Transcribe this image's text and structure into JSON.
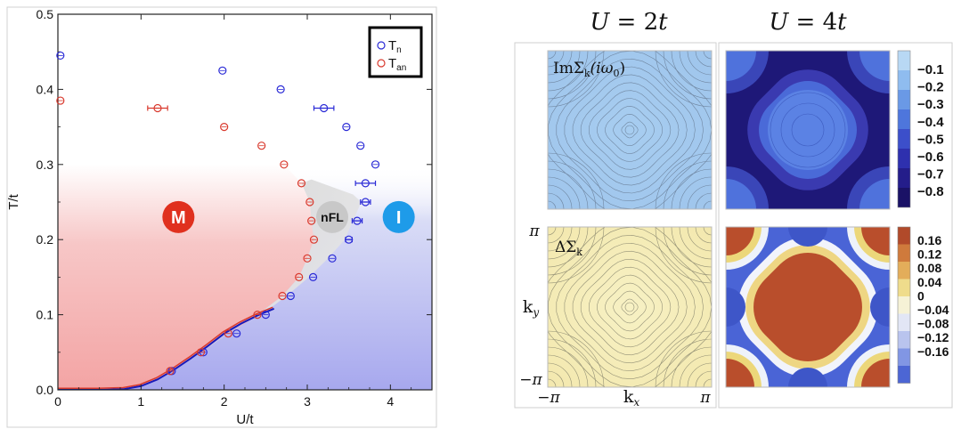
{
  "chart_data": [
    {
      "type": "scatter",
      "title": "",
      "xlabel": "U/t",
      "ylabel": "T/t",
      "xlim": [
        0,
        4.5
      ],
      "ylim": [
        0,
        0.5
      ],
      "x_ticks": [
        "0",
        "1",
        "2",
        "3",
        "4"
      ],
      "y_ticks": [
        "0.0",
        "0.1",
        "0.2",
        "0.3",
        "0.4",
        "0.5"
      ],
      "legend_position": "top-right",
      "series": [
        {
          "name": "T_n",
          "color": "#2a2ad6",
          "points": [
            {
              "x": 0.03,
              "y": 0.445,
              "err": 0
            },
            {
              "x": 1.98,
              "y": 0.425,
              "err": 0
            },
            {
              "x": 2.68,
              "y": 0.4,
              "err": 0
            },
            {
              "x": 3.2,
              "y": 0.375,
              "err": 0.12
            },
            {
              "x": 3.47,
              "y": 0.35,
              "err": 0
            },
            {
              "x": 3.64,
              "y": 0.325,
              "err": 0
            },
            {
              "x": 3.82,
              "y": 0.3,
              "err": 0
            },
            {
              "x": 3.7,
              "y": 0.275,
              "err": 0.12
            },
            {
              "x": 3.7,
              "y": 0.25,
              "err": 0.06
            },
            {
              "x": 3.6,
              "y": 0.225,
              "err": 0.06
            },
            {
              "x": 3.5,
              "y": 0.2,
              "err": 0.04
            },
            {
              "x": 3.3,
              "y": 0.175,
              "err": 0
            },
            {
              "x": 3.07,
              "y": 0.15,
              "err": 0
            },
            {
              "x": 2.8,
              "y": 0.125,
              "err": 0
            },
            {
              "x": 2.5,
              "y": 0.1,
              "err": 0
            },
            {
              "x": 2.15,
              "y": 0.075,
              "err": 0
            },
            {
              "x": 1.75,
              "y": 0.05,
              "err": 0
            },
            {
              "x": 1.37,
              "y": 0.025,
              "err": 0
            }
          ]
        },
        {
          "name": "T_an",
          "color": "#d93a2e",
          "points": [
            {
              "x": 0.03,
              "y": 0.385,
              "err": 0
            },
            {
              "x": 1.2,
              "y": 0.375,
              "err": 0.12
            },
            {
              "x": 2.0,
              "y": 0.35,
              "err": 0
            },
            {
              "x": 2.45,
              "y": 0.325,
              "err": 0
            },
            {
              "x": 2.72,
              "y": 0.3,
              "err": 0
            },
            {
              "x": 2.93,
              "y": 0.275,
              "err": 0
            },
            {
              "x": 3.03,
              "y": 0.25,
              "err": 0
            },
            {
              "x": 3.05,
              "y": 0.225,
              "err": 0
            },
            {
              "x": 3.08,
              "y": 0.2,
              "err": 0
            },
            {
              "x": 3.0,
              "y": 0.175,
              "err": 0
            },
            {
              "x": 2.9,
              "y": 0.15,
              "err": 0
            },
            {
              "x": 2.7,
              "y": 0.125,
              "err": 0
            },
            {
              "x": 2.4,
              "y": 0.1,
              "err": 0
            },
            {
              "x": 2.05,
              "y": 0.075,
              "err": 0
            },
            {
              "x": 1.72,
              "y": 0.05,
              "err": 0
            },
            {
              "x": 1.35,
              "y": 0.025,
              "err": 0
            }
          ]
        }
      ],
      "curve_x": [
        0,
        0.5,
        0.8,
        1.0,
        1.2,
        1.4,
        1.6,
        1.8,
        2.0,
        2.2,
        2.4,
        2.6
      ],
      "curve_y": [
        0,
        0,
        0.001,
        0.005,
        0.014,
        0.027,
        0.042,
        0.058,
        0.075,
        0.088,
        0.099,
        0.108
      ],
      "regions": [
        {
          "label": "M",
          "color": "#e0301e",
          "x": 1.45,
          "y": 0.23
        },
        {
          "label": "nFL",
          "color": "#c8c8c8",
          "x": 3.3,
          "y": 0.23
        },
        {
          "label": "I",
          "color": "#1e9be9",
          "x": 4.1,
          "y": 0.23
        }
      ]
    },
    {
      "type": "heatmap",
      "column_titles": [
        "U = 2t",
        "U = 4t"
      ],
      "row_labels": [
        "ImΣ_k(iω_0)",
        "ΔΣ_k"
      ],
      "xlabel": "k_x",
      "ylabel": "k_y",
      "x_tick_labels": [
        "−π",
        "π"
      ],
      "y_tick_labels": [
        "π",
        "−π"
      ],
      "colorbar_top": [
        "−0.1",
        "−0.2",
        "−0.3",
        "−0.4",
        "−0.5",
        "−0.6",
        "−0.7",
        "−0.8"
      ],
      "colorbar_bottom": [
        "0.16",
        "0.12",
        "0.08",
        "0.04",
        "0",
        "−0.04",
        "−0.08",
        "−0.12",
        "−0.16"
      ]
    }
  ],
  "text": {
    "legend_tn_main": "T",
    "legend_tn_sub": "n",
    "legend_tan_main": "T",
    "legend_tan_sub": "an",
    "col1_title_main": "U",
    "col1_title_eq": " = 2",
    "col1_title_t": "t",
    "col2_title_main": "U",
    "col2_title_eq": " = 4",
    "col2_title_t": "t",
    "row1_label_im": "Im",
    "row1_label_sigma": "Σ",
    "row1_label_k": "k",
    "row1_label_arg": "(iω",
    "row1_label_arg_sub": "0",
    "row1_label_close": ")",
    "row2_label_delta": "ΔΣ",
    "row2_label_k": "k",
    "ky_main": "k",
    "ky_sub": "y",
    "kx_main": "k",
    "kx_sub": "x"
  }
}
